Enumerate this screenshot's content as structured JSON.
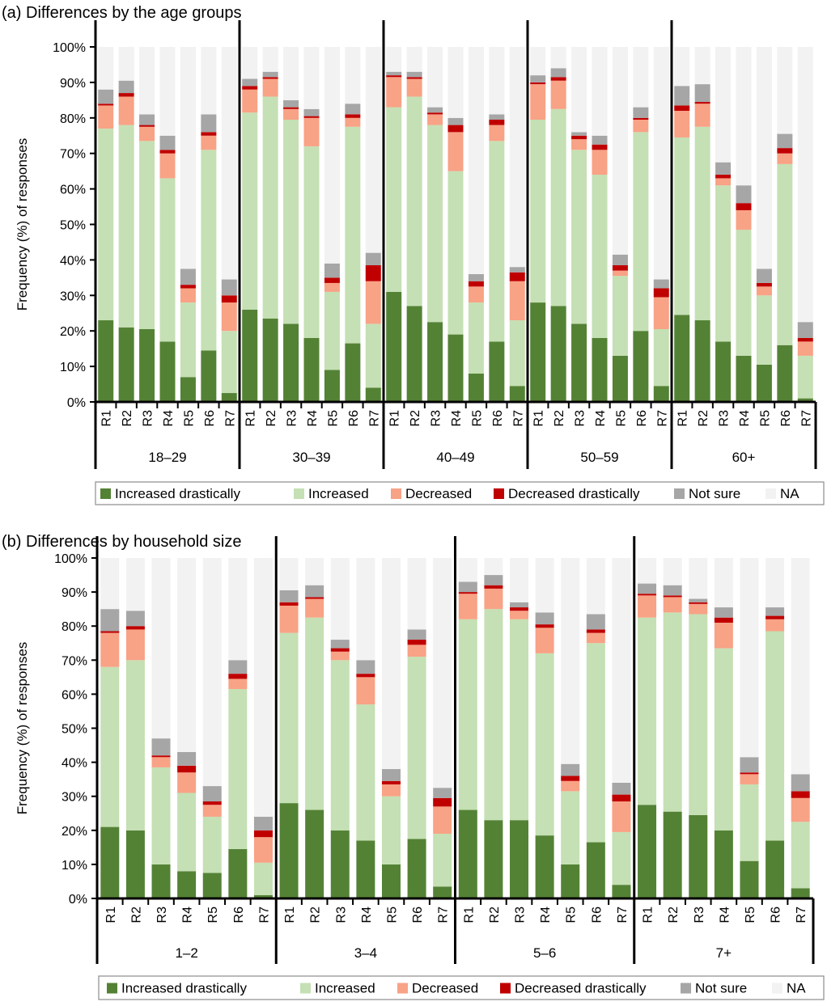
{
  "series": [
    {
      "name": "Increased drastically",
      "color": "#548235"
    },
    {
      "name": "Increased",
      "color": "#c5e0b4"
    },
    {
      "name": "Decreased",
      "color": "#f8a286"
    },
    {
      "name": "Decreased drastically",
      "color": "#c00000"
    },
    {
      "name": "Not sure",
      "color": "#a6a6a6"
    },
    {
      "name": "NA",
      "color": "#f2f2f2"
    }
  ],
  "chart_data": [
    {
      "type": "bar",
      "stacked": true,
      "title": "(a) Differences by the age groups",
      "ylabel": "Frequency (%) of responses",
      "ylim": [
        0,
        100
      ],
      "yticks": [
        "0%",
        "10%",
        "20%",
        "30%",
        "40%",
        "50%",
        "60%",
        "70%",
        "80%",
        "90%",
        "100%"
      ],
      "legend": "bottom",
      "value_order": [
        "Increased drastically",
        "Increased",
        "Decreased",
        "Decreased drastically",
        "Not sure"
      ],
      "na_rule": "NA = 100 minus the other five",
      "groups": [
        {
          "label": "18–29",
          "bars": [
            {
              "label": "R1",
              "values": [
                23,
                54,
                6.5,
                0.5,
                4
              ]
            },
            {
              "label": "R2",
              "values": [
                21,
                57,
                8,
                1,
                3.5
              ]
            },
            {
              "label": "R3",
              "values": [
                20.5,
                53,
                4,
                0.5,
                3
              ]
            },
            {
              "label": "R4",
              "values": [
                17,
                46,
                7,
                1,
                4
              ]
            },
            {
              "label": "R5",
              "values": [
                7,
                21,
                4,
                1,
                4.5
              ]
            },
            {
              "label": "R6",
              "values": [
                14.5,
                56.5,
                4,
                1,
                5
              ]
            },
            {
              "label": "R7",
              "values": [
                2.5,
                17.5,
                8,
                2,
                4.5
              ]
            }
          ]
        },
        {
          "label": "30–39",
          "bars": [
            {
              "label": "R1",
              "values": [
                26,
                55.5,
                6.5,
                1,
                2
              ]
            },
            {
              "label": "R2",
              "values": [
                23.5,
                62.5,
                5,
                0.5,
                1.5
              ]
            },
            {
              "label": "R3",
              "values": [
                22,
                57.5,
                3,
                0.5,
                2
              ]
            },
            {
              "label": "R4",
              "values": [
                18,
                54,
                8,
                0.5,
                2
              ]
            },
            {
              "label": "R5",
              "values": [
                9,
                22,
                2.5,
                1.5,
                4
              ]
            },
            {
              "label": "R6",
              "values": [
                16.5,
                61,
                2.5,
                1,
                3
              ]
            },
            {
              "label": "R7",
              "values": [
                4,
                18,
                12,
                4.5,
                3.5
              ]
            }
          ]
        },
        {
          "label": "40–49",
          "bars": [
            {
              "label": "R1",
              "values": [
                31,
                52,
                8.5,
                0.5,
                1
              ]
            },
            {
              "label": "R2",
              "values": [
                27,
                59,
                5,
                0.5,
                1.5
              ]
            },
            {
              "label": "R3",
              "values": [
                22.5,
                55.5,
                3,
                0.5,
                1.5
              ]
            },
            {
              "label": "R4",
              "values": [
                19,
                46,
                11,
                2,
                2
              ]
            },
            {
              "label": "R5",
              "values": [
                8,
                20,
                4.5,
                1.5,
                2
              ]
            },
            {
              "label": "R6",
              "values": [
                17,
                56.5,
                4.5,
                1.5,
                1.5
              ]
            },
            {
              "label": "R7",
              "values": [
                4.5,
                18.5,
                11,
                2.5,
                1.5
              ]
            }
          ]
        },
        {
          "label": "50–59",
          "bars": [
            {
              "label": "R1",
              "values": [
                28,
                51.5,
                10,
                0.5,
                2
              ]
            },
            {
              "label": "R2",
              "values": [
                27,
                55.5,
                8,
                1,
                2.5
              ]
            },
            {
              "label": "R3",
              "values": [
                22,
                49,
                3,
                1,
                1
              ]
            },
            {
              "label": "R4",
              "values": [
                18,
                46,
                7,
                1.5,
                2.5
              ]
            },
            {
              "label": "R5",
              "values": [
                13,
                22.5,
                1.5,
                1.5,
                3
              ]
            },
            {
              "label": "R6",
              "values": [
                20,
                56,
                3.5,
                0.5,
                3
              ]
            },
            {
              "label": "R7",
              "values": [
                4.5,
                16,
                9,
                2.5,
                2.5
              ]
            }
          ]
        },
        {
          "label": "60+",
          "bars": [
            {
              "label": "R1",
              "values": [
                24.5,
                50,
                7.5,
                1.5,
                5.5
              ]
            },
            {
              "label": "R2",
              "values": [
                23,
                54.5,
                6.5,
                0.5,
                5
              ]
            },
            {
              "label": "R3",
              "values": [
                17,
                44,
                2,
                1,
                3.5
              ]
            },
            {
              "label": "R4",
              "values": [
                13,
                35.5,
                5.5,
                2,
                5
              ]
            },
            {
              "label": "R5",
              "values": [
                10.5,
                19.5,
                2.5,
                1,
                4
              ]
            },
            {
              "label": "R6",
              "values": [
                16,
                51,
                3,
                1.5,
                4
              ]
            },
            {
              "label": "R7",
              "values": [
                1,
                12,
                4,
                1,
                4.5
              ]
            }
          ]
        }
      ]
    },
    {
      "type": "bar",
      "stacked": true,
      "title": "(b) Differences by household size",
      "ylabel": "Frequency (%) of responses",
      "ylim": [
        0,
        100
      ],
      "yticks": [
        "0%",
        "10%",
        "20%",
        "30%",
        "40%",
        "50%",
        "60%",
        "70%",
        "80%",
        "90%",
        "100%"
      ],
      "legend": "bottom",
      "value_order": [
        "Increased drastically",
        "Increased",
        "Decreased",
        "Decreased drastically",
        "Not sure"
      ],
      "na_rule": "NA = 100 minus the other five",
      "groups": [
        {
          "label": "1–2",
          "bars": [
            {
              "label": "R1",
              "values": [
                21,
                47,
                10,
                0.5,
                6.5
              ]
            },
            {
              "label": "R2",
              "values": [
                20,
                50,
                9,
                1,
                4.5
              ]
            },
            {
              "label": "R3",
              "values": [
                10,
                28.5,
                3,
                0.5,
                5
              ]
            },
            {
              "label": "R4",
              "values": [
                8,
                23,
                6,
                2,
                4
              ]
            },
            {
              "label": "R5",
              "values": [
                7.5,
                16.5,
                3.5,
                1,
                4.5
              ]
            },
            {
              "label": "R6",
              "values": [
                14.5,
                47,
                3,
                1.5,
                4
              ]
            },
            {
              "label": "R7",
              "values": [
                1,
                9.5,
                7.5,
                2,
                4
              ]
            }
          ]
        },
        {
          "label": "3–4",
          "bars": [
            {
              "label": "R1",
              "values": [
                28,
                50,
                8,
                1,
                3.5
              ]
            },
            {
              "label": "R2",
              "values": [
                26,
                56.5,
                5.5,
                0.5,
                3.5
              ]
            },
            {
              "label": "R3",
              "values": [
                20,
                50,
                2.5,
                1,
                2.5
              ]
            },
            {
              "label": "R4",
              "values": [
                17,
                40,
                8,
                1,
                4
              ]
            },
            {
              "label": "R5",
              "values": [
                10,
                20,
                3.5,
                1,
                3.5
              ]
            },
            {
              "label": "R6",
              "values": [
                17.5,
                53.5,
                3.5,
                1.5,
                3
              ]
            },
            {
              "label": "R7",
              "values": [
                3.5,
                15.5,
                8,
                2.5,
                3
              ]
            }
          ]
        },
        {
          "label": "5–6",
          "bars": [
            {
              "label": "R1",
              "values": [
                26,
                56,
                7.5,
                0.5,
                3
              ]
            },
            {
              "label": "R2",
              "values": [
                23,
                62,
                6,
                1,
                3
              ]
            },
            {
              "label": "R3",
              "values": [
                23,
                59,
                2.5,
                1,
                1.5
              ]
            },
            {
              "label": "R4",
              "values": [
                18.5,
                53.5,
                7.5,
                1,
                3.5
              ]
            },
            {
              "label": "R5",
              "values": [
                10,
                21.5,
                3,
                1.5,
                3.5
              ]
            },
            {
              "label": "R6",
              "values": [
                16.5,
                58.5,
                3,
                1,
                4.5
              ]
            },
            {
              "label": "R7",
              "values": [
                4,
                15.5,
                9,
                2,
                3.5
              ]
            }
          ]
        },
        {
          "label": "7+",
          "bars": [
            {
              "label": "R1",
              "values": [
                27.5,
                55,
                6.5,
                0.5,
                3
              ]
            },
            {
              "label": "R2",
              "values": [
                25.5,
                58.5,
                4.5,
                0.5,
                3
              ]
            },
            {
              "label": "R3",
              "values": [
                24.5,
                59,
                3,
                0.5,
                1
              ]
            },
            {
              "label": "R4",
              "values": [
                20,
                53.5,
                7.5,
                1.5,
                3
              ]
            },
            {
              "label": "R5",
              "values": [
                11,
                22.5,
                3,
                0.5,
                4.5
              ]
            },
            {
              "label": "R6",
              "values": [
                17,
                61.5,
                3.5,
                1,
                2.5
              ]
            },
            {
              "label": "R7",
              "values": [
                3,
                19.5,
                7,
                2,
                5
              ]
            }
          ]
        }
      ]
    }
  ]
}
